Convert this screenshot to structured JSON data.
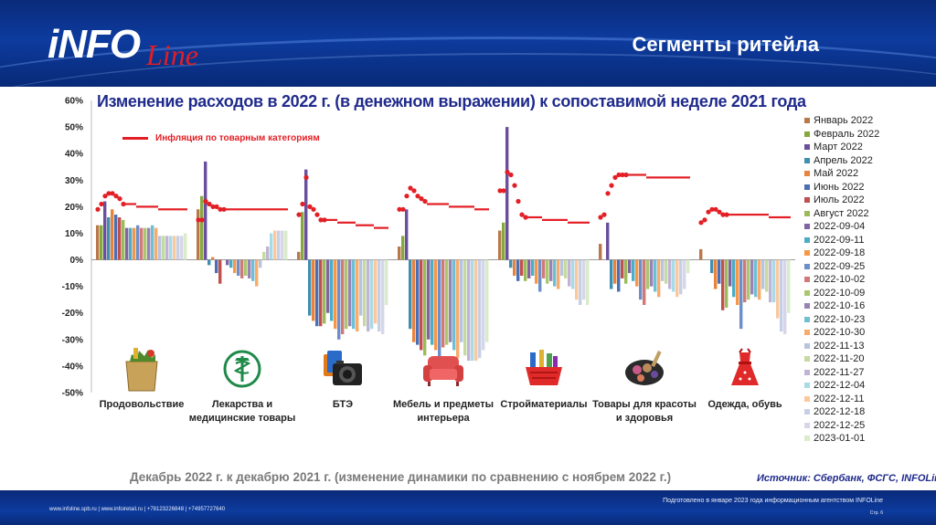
{
  "header": {
    "logo_main": "iNFO",
    "logo_sub": "Line",
    "slide_title": "Сегменты ритейла"
  },
  "chart_title": "Изменение расходов в 2022 г. (в денежном выражении) к сопоставимой неделе 2021 года",
  "inflation_label": "Инфляция по товарным категориям",
  "subtitle_note": "Декабрь 2022 г. к декабрю 2021 г. (изменение динамики по сравнению с ноябрем 2022 г.)",
  "source": "Источник: Сбербанк, ФСГС, INFOLine",
  "footer": {
    "links": "www.infoline.spb.ru | www.infoiretail.ru | +78123226848 | +74957727640",
    "prepared": "Подготовлено в январе 2023 года информационным агентством INFOLine",
    "page": "Стр. 6"
  },
  "colors": {
    "inflation": "#e31e24",
    "title": "#1f2a8c",
    "header_bg": "#0d3b9e"
  },
  "chart_data": {
    "type": "bar",
    "ylim": [
      -50,
      60
    ],
    "yticks": [
      -50,
      -40,
      -30,
      -20,
      -10,
      0,
      10,
      20,
      30,
      40,
      50,
      60
    ],
    "tick_format": "{v}%",
    "categories": [
      {
        "label": "Продовольствие",
        "icon": "grocery-bag-icon"
      },
      {
        "label": "Лекарства и медицинские товары",
        "icon": "pharmacy-icon"
      },
      {
        "label": "БТЭ",
        "icon": "camera-electronics-icon"
      },
      {
        "label": "Мебель и предметы интерьера",
        "icon": "sofa-icon"
      },
      {
        "label": "Стройматериалы",
        "icon": "tools-basket-icon"
      },
      {
        "label": "Товары для красоты и здоровья",
        "icon": "cosmetics-icon"
      },
      {
        "label": "Одежда, обувь",
        "icon": "dress-icon"
      }
    ],
    "series": [
      {
        "name": "Январь 2022",
        "color": "#b9784a",
        "values": [
          13,
          19,
          3,
          5,
          11,
          6,
          4
        ]
      },
      {
        "name": "Февраль 2022",
        "color": "#86a83f",
        "values": [
          13,
          24,
          18,
          9,
          14,
          0,
          0
        ]
      },
      {
        "name": "Март 2022",
        "color": "#6a4f9c",
        "values": [
          22,
          37,
          34,
          19,
          50,
          14,
          0
        ]
      },
      {
        "name": "Апрель 2022",
        "color": "#3f8fb2",
        "values": [
          16,
          -2,
          -21,
          -26,
          -3,
          -11,
          -5
        ]
      },
      {
        "name": "Май 2022",
        "color": "#e8833b",
        "values": [
          19,
          1,
          -23,
          -31,
          -6,
          -9,
          -11
        ]
      },
      {
        "name": "Июнь 2022",
        "color": "#4a6fb5",
        "values": [
          17,
          -5,
          -25,
          -32,
          -8,
          -12,
          -9
        ]
      },
      {
        "name": "Июль 2022",
        "color": "#c0504d",
        "values": [
          16,
          -9,
          -25,
          -34,
          -6,
          -7,
          -19
        ]
      },
      {
        "name": "Август 2022",
        "color": "#9bbb59",
        "values": [
          15,
          0,
          -24,
          -36,
          -8,
          -9,
          -18
        ]
      },
      {
        "name": "2022-09-04",
        "color": "#8064a2",
        "values": [
          12,
          -2,
          -20,
          -30,
          -7,
          -5,
          -10
        ]
      },
      {
        "name": "2022-09-11",
        "color": "#4bacc6",
        "values": [
          12,
          -3,
          -23,
          -32,
          -6,
          -8,
          -14
        ]
      },
      {
        "name": "2022-09-18",
        "color": "#f79646",
        "values": [
          12,
          -5,
          -26,
          -34,
          -9,
          -10,
          -17
        ]
      },
      {
        "name": "2022-09-25",
        "color": "#6d8ec8",
        "values": [
          13,
          -6,
          -30,
          -37,
          -12,
          -15,
          -26
        ]
      },
      {
        "name": "2022-10-02",
        "color": "#d07a78",
        "values": [
          12,
          -7,
          -28,
          -33,
          -7,
          -17,
          -16
        ]
      },
      {
        "name": "2022-10-09",
        "color": "#aac66e",
        "values": [
          12,
          -6,
          -26,
          -32,
          -9,
          -11,
          -15
        ]
      },
      {
        "name": "2022-10-16",
        "color": "#9783b5",
        "values": [
          12,
          -7,
          -25,
          -31,
          -8,
          -10,
          -13
        ]
      },
      {
        "name": "2022-10-23",
        "color": "#6fbfd4",
        "values": [
          13,
          -8,
          -26,
          -34,
          -10,
          -12,
          -14
        ]
      },
      {
        "name": "2022-10-30",
        "color": "#f9ab6c",
        "values": [
          12,
          -10,
          -27,
          -37,
          -11,
          -14,
          -15
        ]
      },
      {
        "name": "2022-11-13",
        "color": "#b6c4e0",
        "values": [
          9,
          -3,
          -21,
          -31,
          -6,
          -8,
          -11
        ]
      },
      {
        "name": "2022-11-20",
        "color": "#c5d9a0",
        "values": [
          9,
          3,
          -25,
          -36,
          -7,
          -9,
          -12
        ]
      },
      {
        "name": "2022-11-27",
        "color": "#c0b4d6",
        "values": [
          9,
          5,
          -27,
          -38,
          -10,
          -11,
          -16
        ]
      },
      {
        "name": "2022-12-04",
        "color": "#a9dae7",
        "values": [
          9,
          10,
          -26,
          -38,
          -11,
          -12,
          -16
        ]
      },
      {
        "name": "2022-12-11",
        "color": "#fbc89e",
        "values": [
          9,
          11,
          -24,
          -38,
          -15,
          -14,
          -22
        ]
      },
      {
        "name": "2022-12-18",
        "color": "#c7cfe6",
        "values": [
          9,
          11,
          -27,
          -37,
          -17,
          -13,
          -27
        ]
      },
      {
        "name": "2022-12-25",
        "color": "#d6d6e8",
        "values": [
          9,
          11,
          -28,
          -34,
          -15,
          -11,
          -28
        ]
      },
      {
        "name": "2023-01-01",
        "color": "#d9ecc9",
        "values": [
          10,
          11,
          -17,
          -31,
          -17,
          -5,
          -20
        ]
      }
    ],
    "inflation": [
      [
        19,
        21,
        24,
        25,
        25,
        24,
        23,
        21,
        21,
        21,
        21,
        20,
        20,
        20,
        20,
        20,
        20,
        19,
        19,
        19,
        19,
        19,
        19,
        19,
        19
      ],
      [
        15,
        15,
        22,
        21,
        20,
        20,
        19,
        19,
        19,
        19,
        19,
        19,
        19,
        19,
        19,
        19,
        19,
        19,
        19,
        19,
        19,
        19,
        19,
        19,
        19
      ],
      [
        17,
        21,
        31,
        20,
        19,
        17,
        15,
        15,
        15,
        15,
        15,
        14,
        14,
        14,
        14,
        14,
        13,
        13,
        13,
        13,
        13,
        12,
        12,
        12,
        12
      ],
      [
        19,
        19,
        24,
        27,
        26,
        24,
        23,
        22,
        21,
        21,
        21,
        21,
        21,
        21,
        20,
        20,
        20,
        20,
        20,
        20,
        20,
        19,
        19,
        19,
        19
      ],
      [
        26,
        26,
        33,
        32,
        28,
        22,
        17,
        16,
        16,
        16,
        16,
        16,
        15,
        15,
        15,
        15,
        15,
        15,
        15,
        14,
        14,
        14,
        14,
        14,
        14
      ],
      [
        16,
        17,
        25,
        28,
        31,
        32,
        32,
        32,
        32,
        32,
        32,
        32,
        32,
        31,
        31,
        31,
        31,
        31,
        31,
        31,
        31,
        31,
        31,
        31,
        31
      ],
      [
        14,
        15,
        18,
        19,
        19,
        18,
        17,
        17,
        17,
        17,
        17,
        17,
        17,
        17,
        17,
        17,
        17,
        17,
        17,
        16,
        16,
        16,
        16,
        16,
        16
      ]
    ]
  }
}
